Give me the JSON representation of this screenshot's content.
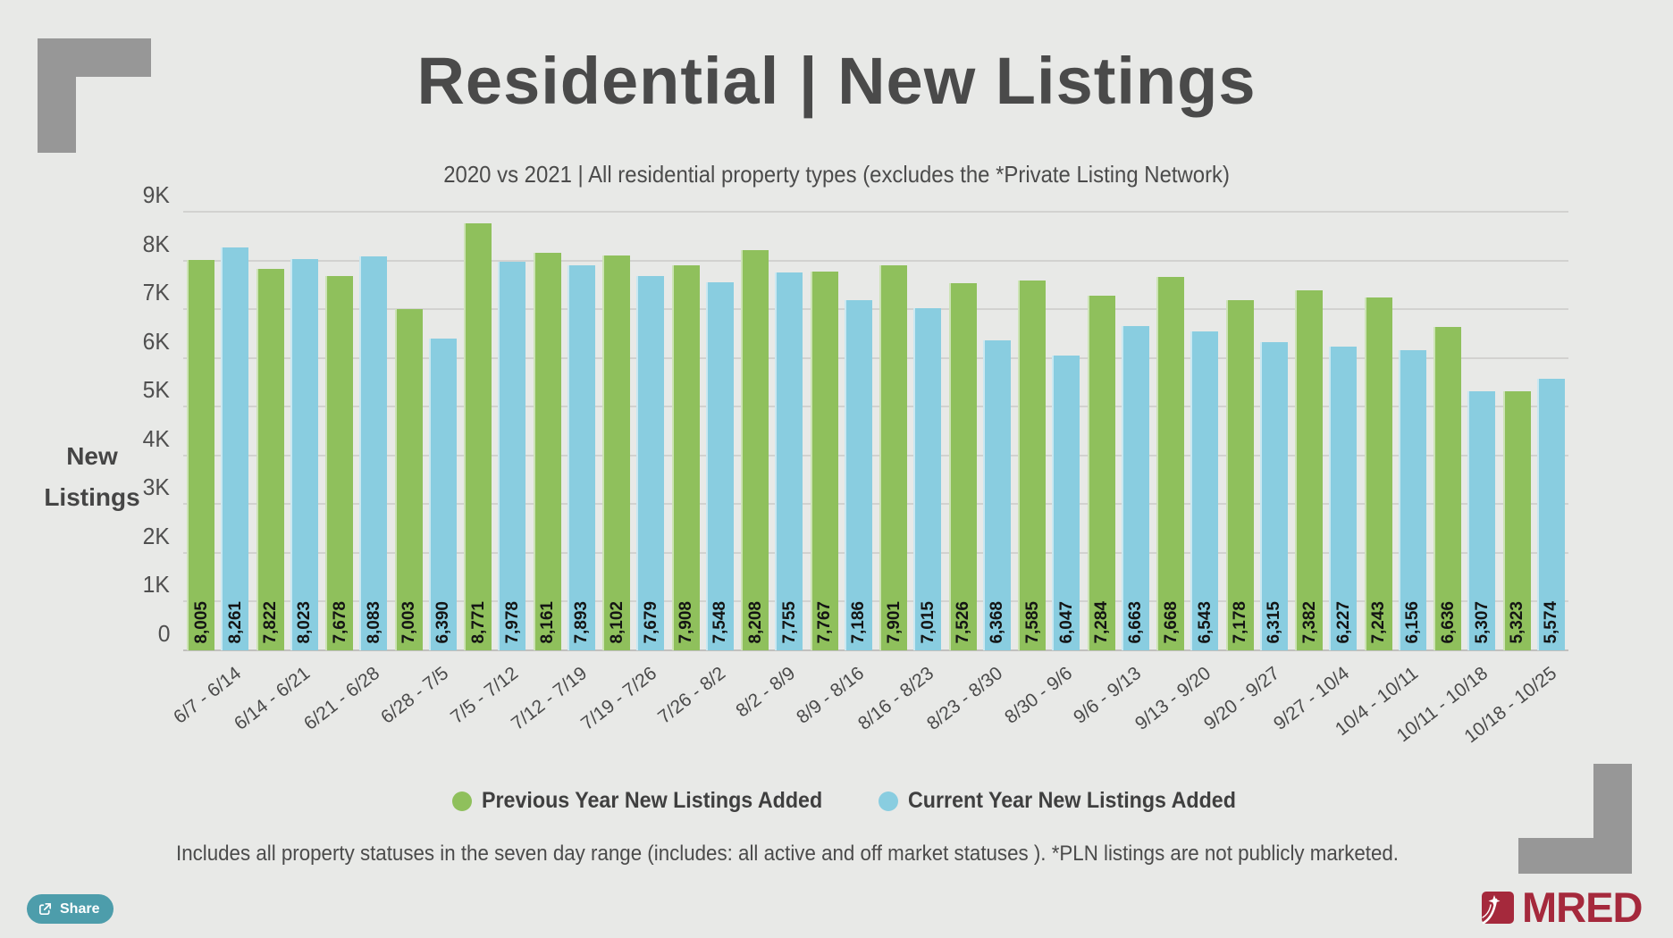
{
  "header": {
    "title": "Residential | New Listings",
    "subtitle": "2020 vs 2021 | All residential property types (excludes the *Private Listing Network)"
  },
  "colors": {
    "background": "#e8e9e7",
    "previous_year_green": "#8fc05c",
    "current_year_blue": "#89cde0",
    "title_gray": "#4a4a4a",
    "corner_gray": "#979797",
    "share_teal": "#4d9dab",
    "mred_red": "#a5293c"
  },
  "chart_data": {
    "type": "bar",
    "title": "Residential | New Listings",
    "subtitle": "2020 vs 2021 | All residential property types (excludes the *Private Listing Network)",
    "ylabel_lines": [
      "New",
      "Listings"
    ],
    "ylim": [
      0,
      9000
    ],
    "grid": true,
    "legend_position": "bottom",
    "value_labels": true,
    "yticks": [
      {
        "label": "9K",
        "value": 9000
      },
      {
        "label": "8K",
        "value": 8000
      },
      {
        "label": "7K",
        "value": 7000
      },
      {
        "label": "6K",
        "value": 6000
      },
      {
        "label": "5K",
        "value": 5000
      },
      {
        "label": "4K",
        "value": 4000
      },
      {
        "label": "3K",
        "value": 3000
      },
      {
        "label": "2K",
        "value": 2000
      },
      {
        "label": "1K",
        "value": 1000
      },
      {
        "label": "0",
        "value": 0
      }
    ],
    "categories": [
      "6/7 - 6/14",
      "6/14 - 6/21",
      "6/21 - 6/28",
      "6/28 - 7/5",
      "7/5 - 7/12",
      "7/12 - 7/19",
      "7/19 - 7/26",
      "7/26 - 8/2",
      "8/2 - 8/9",
      "8/9 - 8/16",
      "8/16 - 8/23",
      "8/23 - 8/30",
      "8/30 - 9/6",
      "9/6 - 9/13",
      "9/13 - 9/20",
      "9/20 - 9/27",
      "9/27 - 10/4",
      "10/4 - 10/11",
      "10/11 - 10/18",
      "10/18 - 10/25"
    ],
    "series": [
      {
        "key": "previous-year",
        "name": "Previous Year New Listings Added",
        "color": "#8fc05c",
        "values": [
          8005,
          7822,
          7678,
          7003,
          8771,
          8161,
          8102,
          7908,
          8208,
          7767,
          7901,
          7526,
          7585,
          7284,
          7668,
          7178,
          7382,
          7243,
          6636,
          5323
        ]
      },
      {
        "key": "current-year",
        "name": "Current Year New Listings Added",
        "color": "#89cde0",
        "values": [
          8261,
          8023,
          8083,
          6390,
          7978,
          7893,
          7679,
          7548,
          7755,
          7186,
          7015,
          6368,
          6047,
          6663,
          6543,
          6315,
          6227,
          6156,
          5307,
          5574
        ]
      }
    ]
  },
  "footer": {
    "note": "Includes all property statuses in the seven day range (includes:  all active and off market statuses ).  *PLN listings are not publicly marketed."
  },
  "share_button": {
    "label": "Share"
  },
  "logo": {
    "text": "MRED"
  }
}
